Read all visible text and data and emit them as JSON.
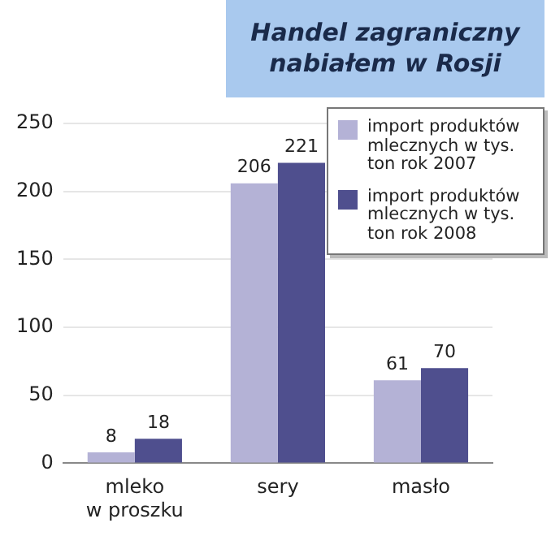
{
  "chart_data": {
    "type": "bar",
    "title": "Handel zagraniczny nabiałem w Rosji",
    "categories": [
      "mleko\nw proszku",
      "sery",
      "masło"
    ],
    "series": [
      {
        "name": "import produktów mlecznych w tys. ton rok 2007",
        "color": "#b4b2d6",
        "values": [
          8,
          206,
          61
        ]
      },
      {
        "name": "import produktów mlecznych w tys. ton rok 2008",
        "color": "#4f4f8e",
        "values": [
          18,
          221,
          70
        ]
      }
    ],
    "ylim": [
      0,
      250
    ],
    "yticks": [
      0,
      50,
      100,
      150,
      200,
      250
    ],
    "grid": "y",
    "legend": "top right",
    "data_labels": true
  }
}
